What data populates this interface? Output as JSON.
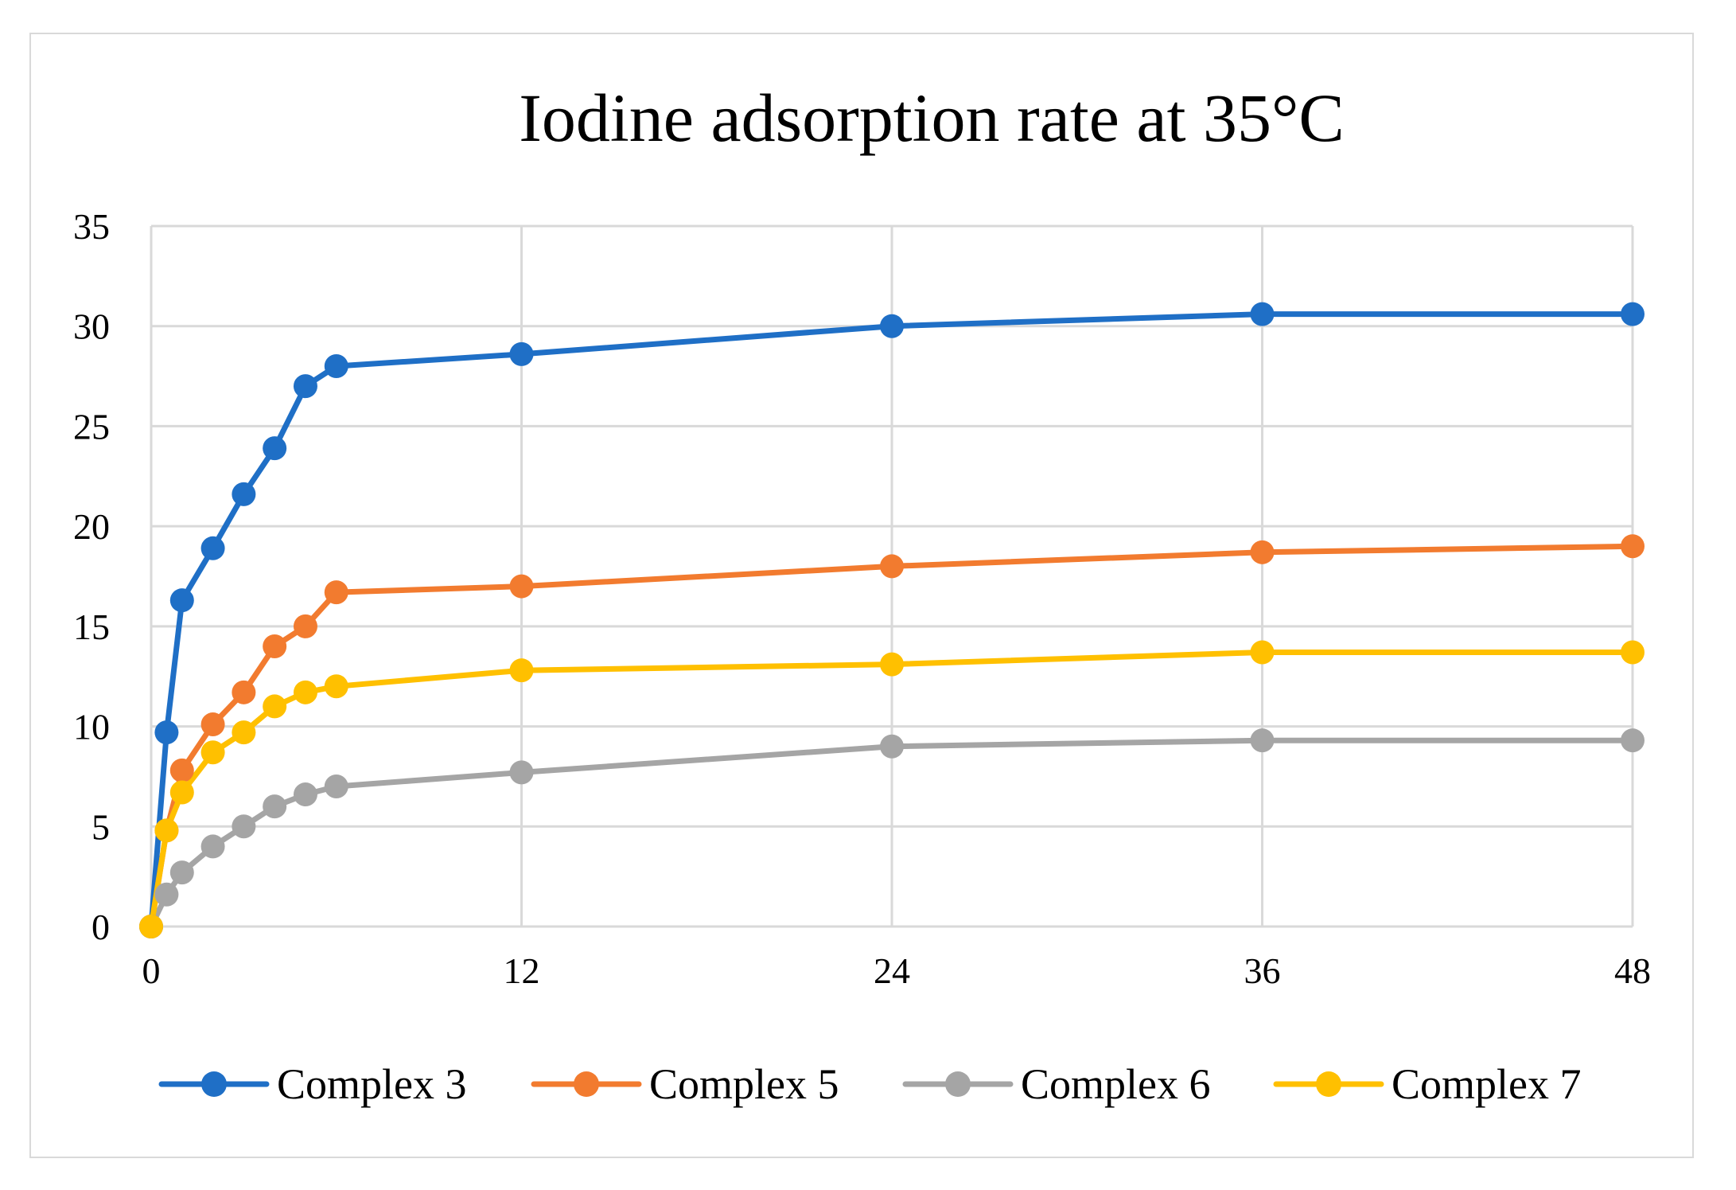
{
  "chart_data": {
    "type": "line",
    "title": "Iodine adsorption rate at 35°C",
    "xlabel": "",
    "ylabel": "",
    "xlim": [
      0,
      48
    ],
    "ylim": [
      0,
      35
    ],
    "xticks": [
      0,
      12,
      24,
      36,
      48
    ],
    "yticks": [
      0,
      5,
      10,
      15,
      20,
      25,
      30,
      35
    ],
    "grid": true,
    "legend_position": "bottom",
    "x": [
      0,
      0.5,
      1,
      2,
      3,
      4,
      5,
      6,
      12,
      24,
      36,
      48
    ],
    "series": [
      {
        "name": "Complex 3",
        "color": "#1F6FC6",
        "values": [
          0,
          9.7,
          16.3,
          18.9,
          21.6,
          23.9,
          27.0,
          28.0,
          28.6,
          30.0,
          30.6,
          30.6
        ]
      },
      {
        "name": "Complex 5",
        "color": "#F27B2F",
        "values": [
          0,
          4.8,
          7.8,
          10.1,
          11.7,
          14.0,
          15.0,
          16.7,
          17.0,
          18.0,
          18.7,
          19.0
        ]
      },
      {
        "name": "Complex 6",
        "color": "#A5A5A5",
        "values": [
          0,
          1.6,
          2.7,
          4.0,
          5.0,
          6.0,
          6.6,
          7.0,
          7.7,
          9.0,
          9.3,
          9.3
        ]
      },
      {
        "name": "Complex 7",
        "color": "#FFC000",
        "values": [
          0,
          4.8,
          6.7,
          8.7,
          9.7,
          11.0,
          11.7,
          12.0,
          12.8,
          13.1,
          13.7,
          13.7
        ]
      }
    ]
  }
}
